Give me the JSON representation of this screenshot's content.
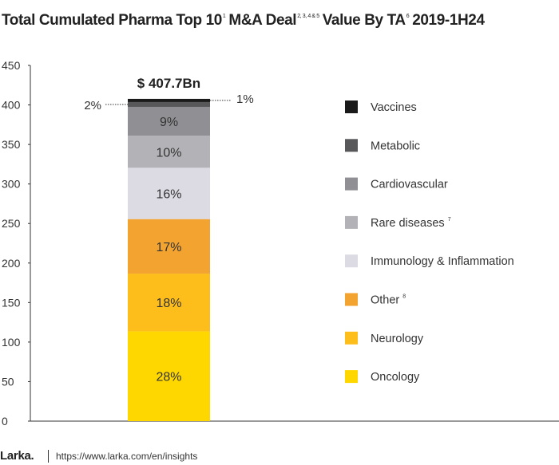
{
  "title": {
    "part1": "Total Cumulated Pharma Top 10",
    "sup1": "1",
    "part2": "M&A Deal",
    "sup2": "2, 3, 4 & 5",
    "part3": "Value By TA",
    "sup3": "6",
    "part4": "2019-1H24"
  },
  "chart_data": {
    "type": "bar",
    "stacked": true,
    "total_label": "$ 407.7Bn",
    "total": 407.7,
    "ylim": [
      0,
      450
    ],
    "yticks": [
      0,
      50,
      100,
      150,
      200,
      250,
      300,
      350,
      400,
      450
    ],
    "legend_position": "right",
    "series": [
      {
        "name": "Oncology",
        "share": 28,
        "label": "28%",
        "color": "#FFD700",
        "text_color": "#333333"
      },
      {
        "name": "Neurology",
        "share": 18,
        "label": "18%",
        "color": "#FDBD1B",
        "text_color": "#333333"
      },
      {
        "name": "Other",
        "legend_sup": "8",
        "share": 17,
        "label": "17%",
        "color": "#F3A330",
        "text_color": "#333333"
      },
      {
        "name": "Immunology & Inflammation",
        "share": 16,
        "label": "16%",
        "color": "#DCDBE4",
        "text_color": "#333333"
      },
      {
        "name": "Rare diseases",
        "legend_sup": "7",
        "share": 10,
        "label": "10%",
        "color": "#B3B2B6",
        "text_color": "#333333"
      },
      {
        "name": "Cardiovascular",
        "share": 9,
        "label": "9%",
        "color": "#909094",
        "text_color": "#333333"
      },
      {
        "name": "Metabolic",
        "share": 1.5,
        "label": "2%",
        "callout": "left",
        "color": "#58585A",
        "text_color": "#333333"
      },
      {
        "name": "Vaccines",
        "share": 1,
        "label": "1%",
        "callout": "right",
        "color": "#1A1A1A",
        "text_color": "#333333"
      }
    ]
  },
  "footer": {
    "brand": "Larka.",
    "url": "https://www.larka.com/en/insights"
  }
}
